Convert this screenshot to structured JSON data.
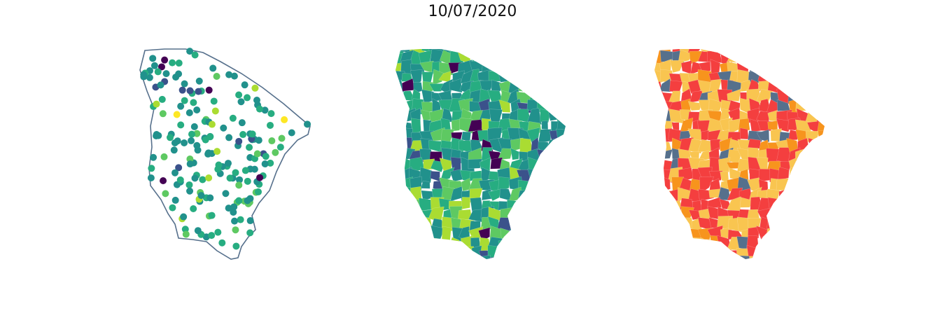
{
  "title": "10/07/2020",
  "colors": {
    "outline": "#56708c",
    "viridis": [
      "#440154",
      "#3b528b",
      "#21918c",
      "#27ad81",
      "#5ec962",
      "#aadc32",
      "#fde725"
    ],
    "risk": {
      "low": "#56708c",
      "moderate": "#f9c550",
      "high": "#f7941d",
      "very_high": "#f43f3f"
    }
  },
  "panels": [
    {
      "id": "points",
      "style": "scatter",
      "legend": "none"
    },
    {
      "id": "gradient",
      "style": "choropleth",
      "palette": "viridis"
    },
    {
      "id": "risk",
      "style": "choropleth",
      "palette": "risk"
    }
  ]
}
